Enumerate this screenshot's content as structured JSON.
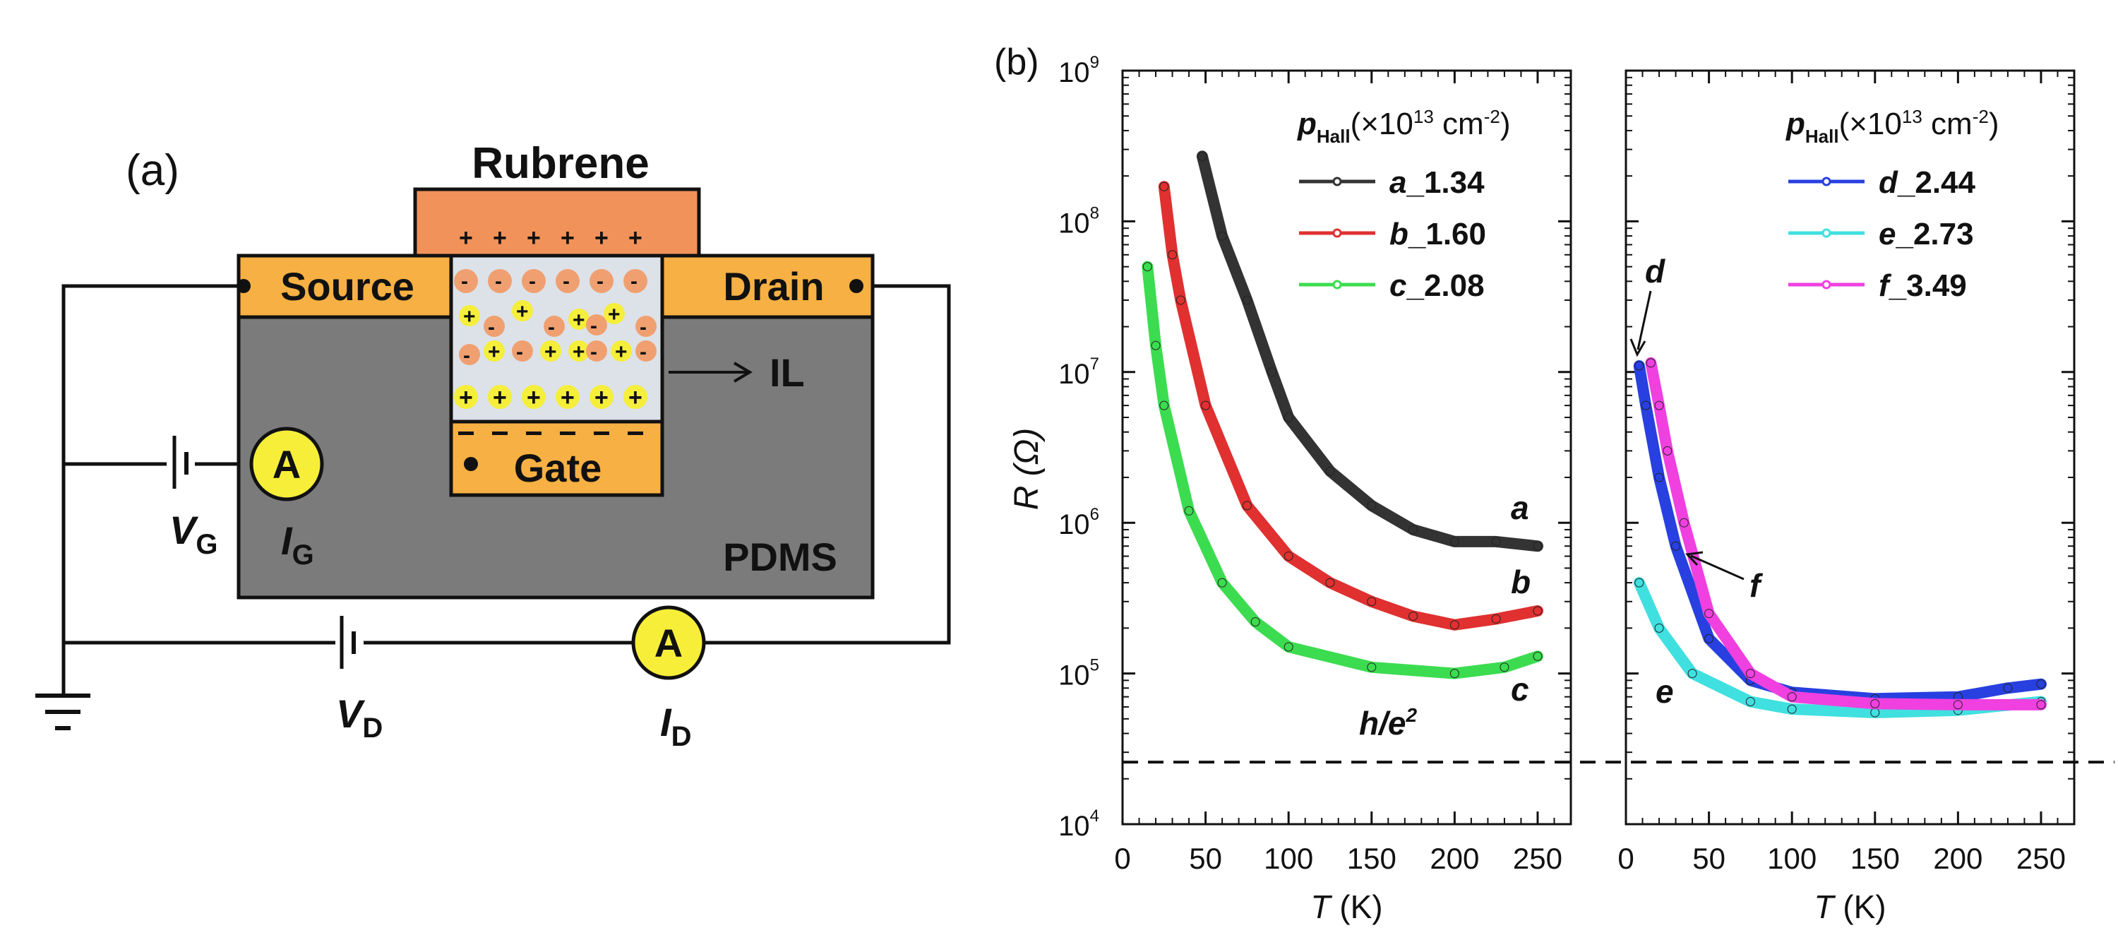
{
  "panel_a": {
    "label": "(a)",
    "rubrene": "Rubrene",
    "source": "Source",
    "drain": "Drain",
    "gate": "Gate",
    "pdms": "PDMS",
    "il": "IL",
    "ammeter": "A",
    "vg": {
      "main": "V",
      "sub": "G"
    },
    "ig": {
      "main": "I",
      "sub": "G"
    },
    "vd": {
      "main": "V",
      "sub": "D"
    },
    "id": {
      "main": "I",
      "sub": "D"
    },
    "colors": {
      "electrode": "#F6B043",
      "rubrene": "#F0925A",
      "pdms": "#7B7B7B",
      "channel": "#DDE2E8",
      "ammeter": "#F7EE3A"
    }
  },
  "chart_data": {
    "panel_label": "(b)",
    "type": "line",
    "yscale": "log",
    "ylabel": "R (Ω)",
    "ylim": [
      10000,
      1000000000
    ],
    "yticks": [
      {
        "base": "10",
        "exp": "4"
      },
      {
        "base": "10",
        "exp": "5"
      },
      {
        "base": "10",
        "exp": "6"
      },
      {
        "base": "10",
        "exp": "7"
      },
      {
        "base": "10",
        "exp": "8"
      },
      {
        "base": "10",
        "exp": "9"
      }
    ],
    "reference_line": {
      "label_main": "h/e",
      "label_exp": "2",
      "value": 25813,
      "style": "dashed"
    },
    "panels": [
      {
        "xlabel": "T (K)",
        "xlim": [
          0,
          270
        ],
        "xticks": [
          "0",
          "50",
          "100",
          "150",
          "200",
          "250"
        ],
        "legend_title": {
          "p": "p",
          "sub": "Hall",
          "unit": "(×10",
          "exp": "13",
          "unit2": " cm",
          "exp2": "-2",
          "close": ")"
        },
        "series": [
          {
            "name": "a_1.34",
            "letter": "a",
            "value": "_1.34",
            "color": "#333333",
            "x": [
              48,
              60,
              75,
              90,
              100,
              125,
              150,
              175,
              200,
              225,
              250
            ],
            "y": [
              270000000,
              80000000,
              30000000,
              10000000,
              5000000,
              2200000,
              1300000,
              900000,
              750000,
              750000,
              700000
            ]
          },
          {
            "name": "b_1.60",
            "letter": "b",
            "value": "_1.60",
            "color": "#E03030",
            "x": [
              25,
              30,
              35,
              50,
              75,
              100,
              125,
              150,
              175,
              200,
              225,
              250
            ],
            "y": [
              170000000,
              60000000,
              30000000,
              6000000,
              1300000,
              600000,
              400000,
              300000,
              240000,
              210000,
              230000,
              260000
            ]
          },
          {
            "name": "c_2.08",
            "letter": "c",
            "value": "_2.08",
            "color": "#3CDC50",
            "x": [
              15,
              20,
              25,
              40,
              60,
              80,
              100,
              150,
              200,
              230,
              250
            ],
            "y": [
              50000000,
              15000000,
              6000000,
              1200000,
              400000,
              220000,
              150000,
              110000,
              100000,
              110000,
              130000
            ]
          }
        ],
        "annotations": [
          "a",
          "b",
          "c"
        ]
      },
      {
        "xlabel": "T (K)",
        "xlim": [
          0,
          270
        ],
        "xticks": [
          "0",
          "50",
          "100",
          "150",
          "200",
          "250"
        ],
        "legend_title": {
          "p": "p",
          "sub": "Hall",
          "unit": "(×10",
          "exp": "13",
          "unit2": " cm",
          "exp2": "-2",
          "close": ")"
        },
        "series": [
          {
            "name": "d_2.44",
            "letter": "d",
            "value": "_2.44",
            "color": "#2840E0",
            "x": [
              8,
              12,
              20,
              30,
              50,
              75,
              100,
              150,
              200,
              230,
              250
            ],
            "y": [
              11000000,
              6000000,
              2000000,
              700000,
              170000,
              90000,
              75000,
              68000,
              70000,
              80000,
              85000
            ]
          },
          {
            "name": "e_2.73",
            "letter": "e",
            "value": "_2.73",
            "color": "#40E0E0",
            "x": [
              8,
              20,
              40,
              75,
              100,
              150,
              200,
              250
            ],
            "y": [
              400000,
              200000,
              100000,
              65000,
              58000,
              55000,
              57000,
              65000
            ]
          },
          {
            "name": "f_3.49",
            "letter": "f",
            "value": "_3.49",
            "color": "#F040E0",
            "x": [
              15,
              20,
              25,
              35,
              50,
              75,
              100,
              150,
              200,
              250
            ],
            "y": [
              11500000,
              6000000,
              3000000,
              1000000,
              250000,
              100000,
              70000,
              63000,
              62000,
              62000
            ]
          }
        ],
        "annotations": [
          "d",
          "e",
          "f"
        ]
      }
    ]
  }
}
